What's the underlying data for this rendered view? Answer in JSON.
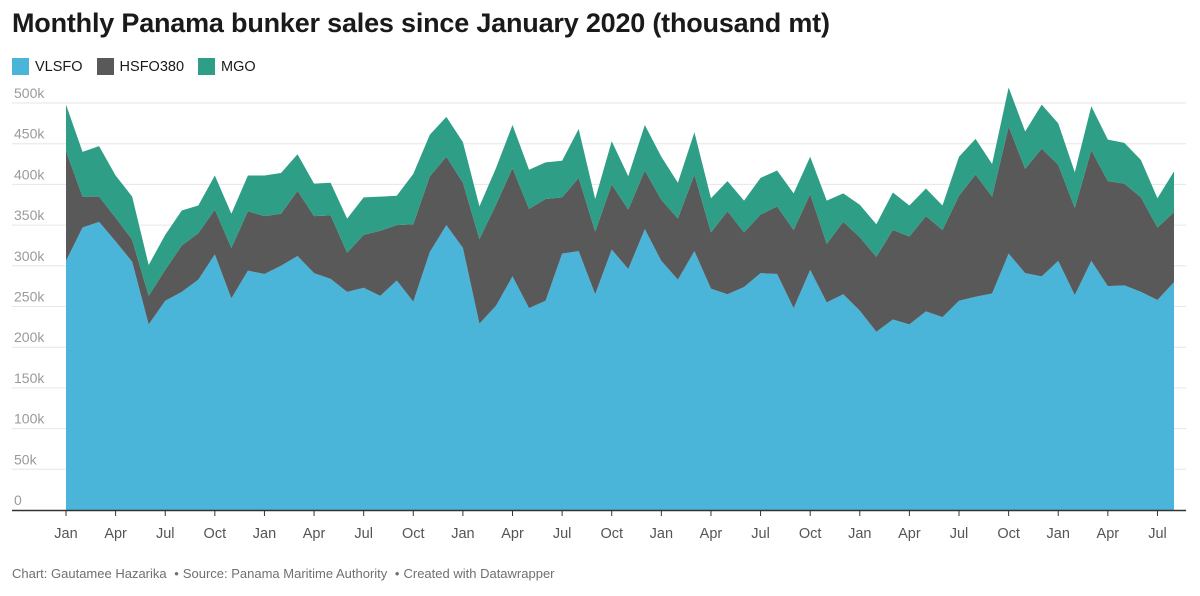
{
  "title": "Monthly Panama bunker sales since January 2020 (thousand mt)",
  "footer": {
    "chart_by": "Chart: Gautamee Hazarika",
    "source": "Source: Panama Maritime Authority",
    "tool": "Created with Datawrapper"
  },
  "colors": {
    "VLSFO": "#4ab4d9",
    "HSFO380": "#595959",
    "MGO": "#2f9e86",
    "grid": "#e6e6e6",
    "axis": "#333333"
  },
  "chart_data": {
    "type": "area",
    "stacked": true,
    "grid": true,
    "legend_position": "top-left",
    "ylim": [
      0,
      500
    ],
    "y_ticks": [
      {
        "value": 500,
        "label": "500k"
      },
      {
        "value": 450,
        "label": "450k"
      },
      {
        "value": 400,
        "label": "400k"
      },
      {
        "value": 350,
        "label": "350k"
      },
      {
        "value": 300,
        "label": "300k"
      },
      {
        "value": 250,
        "label": "250k"
      },
      {
        "value": 200,
        "label": "200k"
      },
      {
        "value": 150,
        "label": "150k"
      },
      {
        "value": 100,
        "label": "100k"
      },
      {
        "value": 50,
        "label": "50k"
      },
      {
        "value": 0,
        "label": "0"
      }
    ],
    "x_ticks": [
      {
        "index": 0,
        "label": "Jan"
      },
      {
        "index": 3,
        "label": "Apr"
      },
      {
        "index": 6,
        "label": "Jul"
      },
      {
        "index": 9,
        "label": "Oct"
      },
      {
        "index": 12,
        "label": "Jan"
      },
      {
        "index": 15,
        "label": "Apr"
      },
      {
        "index": 18,
        "label": "Jul"
      },
      {
        "index": 21,
        "label": "Oct"
      },
      {
        "index": 24,
        "label": "Jan"
      },
      {
        "index": 27,
        "label": "Apr"
      },
      {
        "index": 30,
        "label": "Jul"
      },
      {
        "index": 33,
        "label": "Oct"
      },
      {
        "index": 36,
        "label": "Jan"
      },
      {
        "index": 39,
        "label": "Apr"
      },
      {
        "index": 42,
        "label": "Jul"
      },
      {
        "index": 45,
        "label": "Oct"
      },
      {
        "index": 48,
        "label": "Jan"
      },
      {
        "index": 51,
        "label": "Apr"
      },
      {
        "index": 54,
        "label": "Jul"
      },
      {
        "index": 57,
        "label": "Oct"
      },
      {
        "index": 60,
        "label": "Jan"
      },
      {
        "index": 63,
        "label": "Apr"
      },
      {
        "index": 66,
        "label": "Jul"
      }
    ],
    "series": [
      {
        "name": "VLSFO",
        "values": [
          306,
          347,
          354,
          330,
          305,
          228,
          257,
          268,
          283,
          314,
          260,
          294,
          290,
          300,
          312,
          291,
          284,
          268,
          273,
          263,
          282,
          256,
          317,
          350,
          322,
          229,
          251,
          287,
          248,
          257,
          315,
          318,
          265,
          320,
          296,
          345,
          306,
          283,
          318,
          272,
          265,
          274,
          291,
          290,
          248,
          295,
          255,
          265,
          245,
          219,
          234,
          228,
          244,
          237,
          257,
          262,
          266,
          315,
          291,
          287,
          306,
          264,
          306,
          275,
          276,
          268,
          258,
          280
        ]
      },
      {
        "name": "HSFO380",
        "values": [
          135,
          38,
          31,
          29,
          27,
          35,
          38,
          57,
          57,
          55,
          62,
          73,
          71,
          64,
          80,
          70,
          78,
          48,
          65,
          80,
          68,
          95,
          93,
          84,
          80,
          104,
          124,
          133,
          122,
          125,
          69,
          90,
          77,
          80,
          73,
          72,
          75,
          75,
          94,
          69,
          102,
          67,
          72,
          83,
          96,
          93,
          72,
          89,
          90,
          92,
          110,
          108,
          117,
          107,
          129,
          150,
          119,
          156,
          128,
          157,
          118,
          107,
          136,
          129,
          125,
          116,
          89,
          86
        ]
      },
      {
        "name": "MGO",
        "values": [
          57,
          55,
          62,
          52,
          53,
          38,
          43,
          43,
          34,
          42,
          42,
          44,
          50,
          50,
          45,
          40,
          40,
          42,
          46,
          42,
          36,
          62,
          51,
          49,
          50,
          40,
          45,
          53,
          48,
          45,
          45,
          60,
          40,
          53,
          41,
          56,
          53,
          44,
          52,
          42,
          37,
          39,
          45,
          44,
          45,
          46,
          53,
          35,
          40,
          40,
          46,
          38,
          34,
          30,
          48,
          44,
          40,
          48,
          46,
          54,
          51,
          44,
          54,
          51,
          50,
          46,
          36,
          50
        ]
      }
    ]
  }
}
